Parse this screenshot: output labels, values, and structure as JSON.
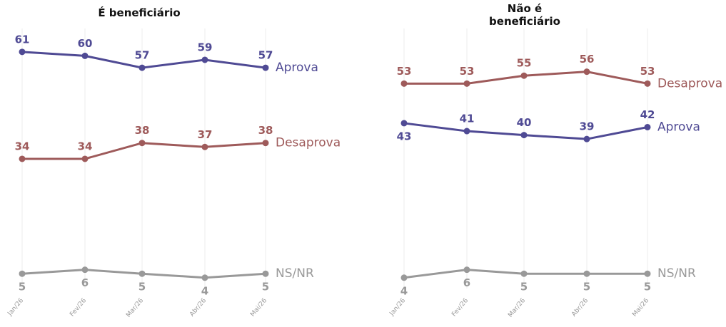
{
  "chart_data": [
    {
      "type": "line",
      "title": "É beneficiário",
      "categories": [
        "Jan/26",
        "Fev/26",
        "Mar/26",
        "Abr/26",
        "Mai/26"
      ],
      "ylim": [
        0,
        67
      ],
      "series": [
        {
          "name": "Aprova",
          "color": "#4f4a94",
          "values": [
            61,
            60,
            57,
            59,
            57
          ]
        },
        {
          "name": "Desaprova",
          "color": "#9e5a5a",
          "values": [
            34,
            34,
            38,
            37,
            38
          ]
        },
        {
          "name": "NS/NR",
          "color": "#999999",
          "values": [
            5,
            6,
            5,
            4,
            5
          ]
        }
      ]
    },
    {
      "type": "line",
      "title": "Não é beneficiário",
      "categories": [
        "Jan/26",
        "Fev/26",
        "Mar/26",
        "Abr/26",
        "Mai/26"
      ],
      "ylim": [
        0,
        67
      ],
      "series": [
        {
          "name": "Desaprova",
          "color": "#9e5a5a",
          "values": [
            53,
            53,
            55,
            56,
            53
          ]
        },
        {
          "name": "Aprova",
          "color": "#4f4a94",
          "values": [
            43,
            41,
            40,
            39,
            42
          ]
        },
        {
          "name": "NS/NR",
          "color": "#999999",
          "values": [
            4,
            6,
            5,
            5,
            5
          ]
        }
      ]
    }
  ]
}
